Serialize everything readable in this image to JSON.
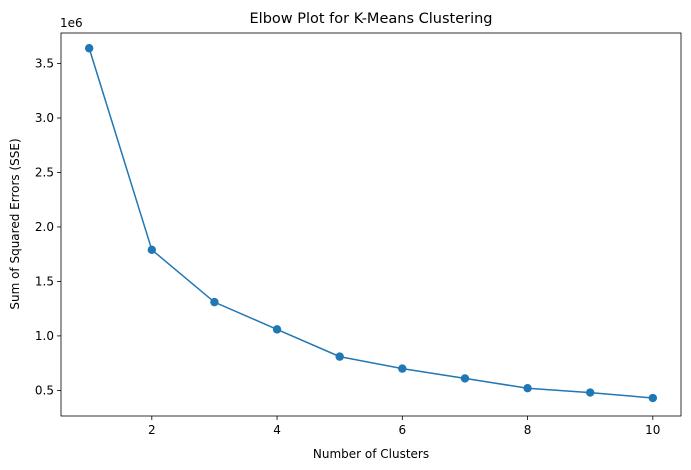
{
  "chart_data": {
    "type": "line",
    "title": "Elbow Plot for K-Means Clustering",
    "xlabel": "Number of Clusters",
    "ylabel": "Sum of Squared Errors (SSE)",
    "y_offset_label": "1e6",
    "xlim": [
      0.55,
      10.45
    ],
    "ylim": [
      0.265,
      3.78
    ],
    "x_ticks": [
      2,
      4,
      6,
      8,
      10
    ],
    "x_tick_labels": [
      "2",
      "4",
      "6",
      "8",
      "10"
    ],
    "y_ticks": [
      0.5,
      1.0,
      1.5,
      2.0,
      2.5,
      3.0,
      3.5
    ],
    "y_tick_labels": [
      "0.5",
      "1.0",
      "1.5",
      "2.0",
      "2.5",
      "3.0",
      "3.5"
    ],
    "grid": false,
    "legend": "none",
    "series": [
      {
        "marker": "circle",
        "color": "#1f77b4",
        "x": [
          1,
          2,
          3,
          4,
          5,
          6,
          7,
          8,
          9,
          10
        ],
        "y": [
          3.64,
          1.79,
          1.31,
          1.06,
          0.81,
          0.7,
          0.61,
          0.52,
          0.48,
          0.43
        ]
      }
    ]
  }
}
